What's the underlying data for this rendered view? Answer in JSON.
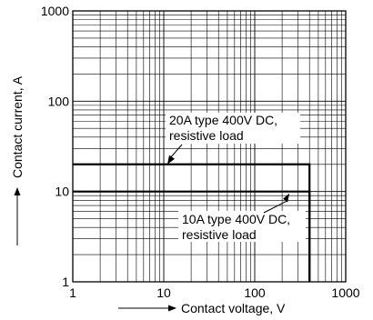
{
  "chart_data": {
    "type": "line",
    "title": "",
    "xlabel": "Contact voltage, V",
    "ylabel": "Contact current, A",
    "x_scale": "log",
    "y_scale": "log",
    "xlim": [
      1,
      1000
    ],
    "ylim": [
      1,
      1000
    ],
    "grid": true,
    "x_ticks": [
      "1",
      "10",
      "100",
      "1000"
    ],
    "y_ticks": [
      "1",
      "10",
      "100",
      "1000"
    ],
    "series": [
      {
        "x": [
          1,
          400,
          400
        ],
        "y": [
          20,
          20,
          1
        ]
      },
      {
        "x": [
          1,
          400,
          400
        ],
        "y": [
          10,
          10,
          1
        ]
      }
    ],
    "annotations": [
      {
        "lines": [
          "20A type 400V DC,",
          "resistive load"
        ],
        "points_to": [
          10,
          20
        ]
      },
      {
        "lines": [
          "10A type 400V DC,",
          "resistive load"
        ],
        "points_to": [
          200,
          10
        ]
      }
    ]
  }
}
